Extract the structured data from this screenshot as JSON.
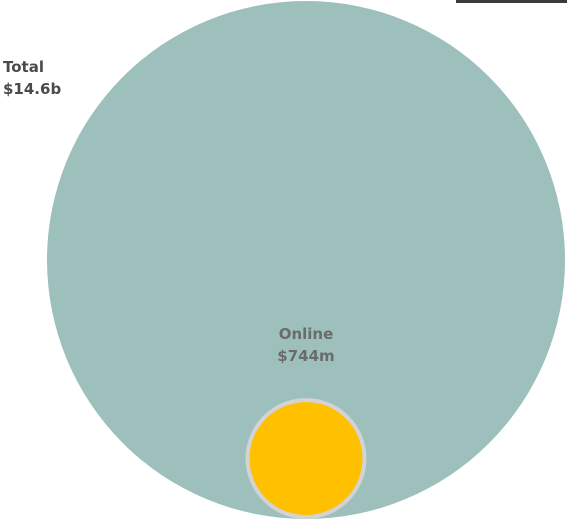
{
  "chart_data": {
    "type": "nested-circles",
    "title": "",
    "series": [
      {
        "name": "Total",
        "value": 14600000000,
        "label": "$14.6b"
      },
      {
        "name": "Online",
        "value": 744000000,
        "label": "$744m"
      }
    ]
  },
  "colors": {
    "total_fill": "#9dc0bc",
    "online_fill": "#ffc000",
    "online_stroke": "#d3d3d3",
    "online_label": "#6b6b6b",
    "total_label": "#4a4a4a",
    "top_rule": "#3a3a3a"
  }
}
